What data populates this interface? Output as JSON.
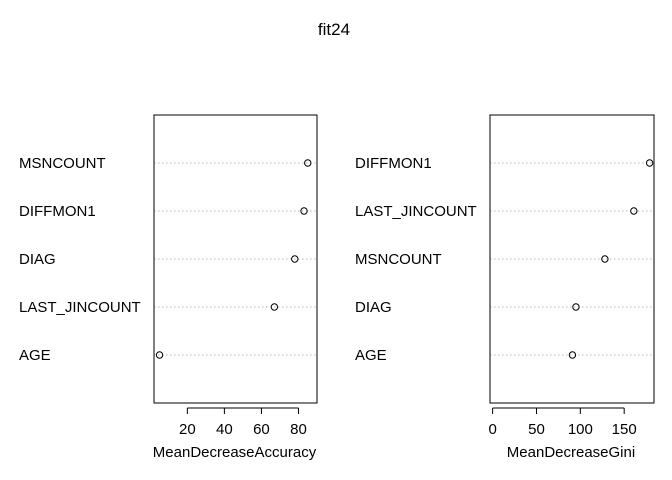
{
  "title": "fit24",
  "chart_data": [
    {
      "type": "scatter",
      "subtype": "dotchart",
      "xlabel": "MeanDecreaseAccuracy",
      "ylabel": "",
      "categories": [
        "MSNCOUNT",
        "DIFFMON1",
        "DIAG",
        "LAST_JINCOUNT",
        "AGE"
      ],
      "values": [
        85,
        83,
        78,
        67,
        5
      ],
      "xlim": [
        2,
        90
      ],
      "xticks": [
        20,
        40,
        60,
        80
      ],
      "xtick_labels": [
        "20",
        "40",
        "60",
        "80"
      ],
      "grid": "dotted horizontal guide lines",
      "marker": "open-circle"
    },
    {
      "type": "scatter",
      "subtype": "dotchart",
      "xlabel": "MeanDecreaseGini",
      "ylabel": "",
      "categories": [
        "DIFFMON1",
        "LAST_JINCOUNT",
        "MSNCOUNT",
        "DIAG",
        "AGE"
      ],
      "values": [
        179,
        161,
        128,
        95,
        91
      ],
      "xlim": [
        -3,
        184
      ],
      "xticks": [
        0,
        50,
        100,
        150
      ],
      "xtick_labels": [
        "0",
        "50",
        "100",
        "150"
      ],
      "grid": "dotted horizontal guide lines",
      "marker": "open-circle"
    }
  ]
}
